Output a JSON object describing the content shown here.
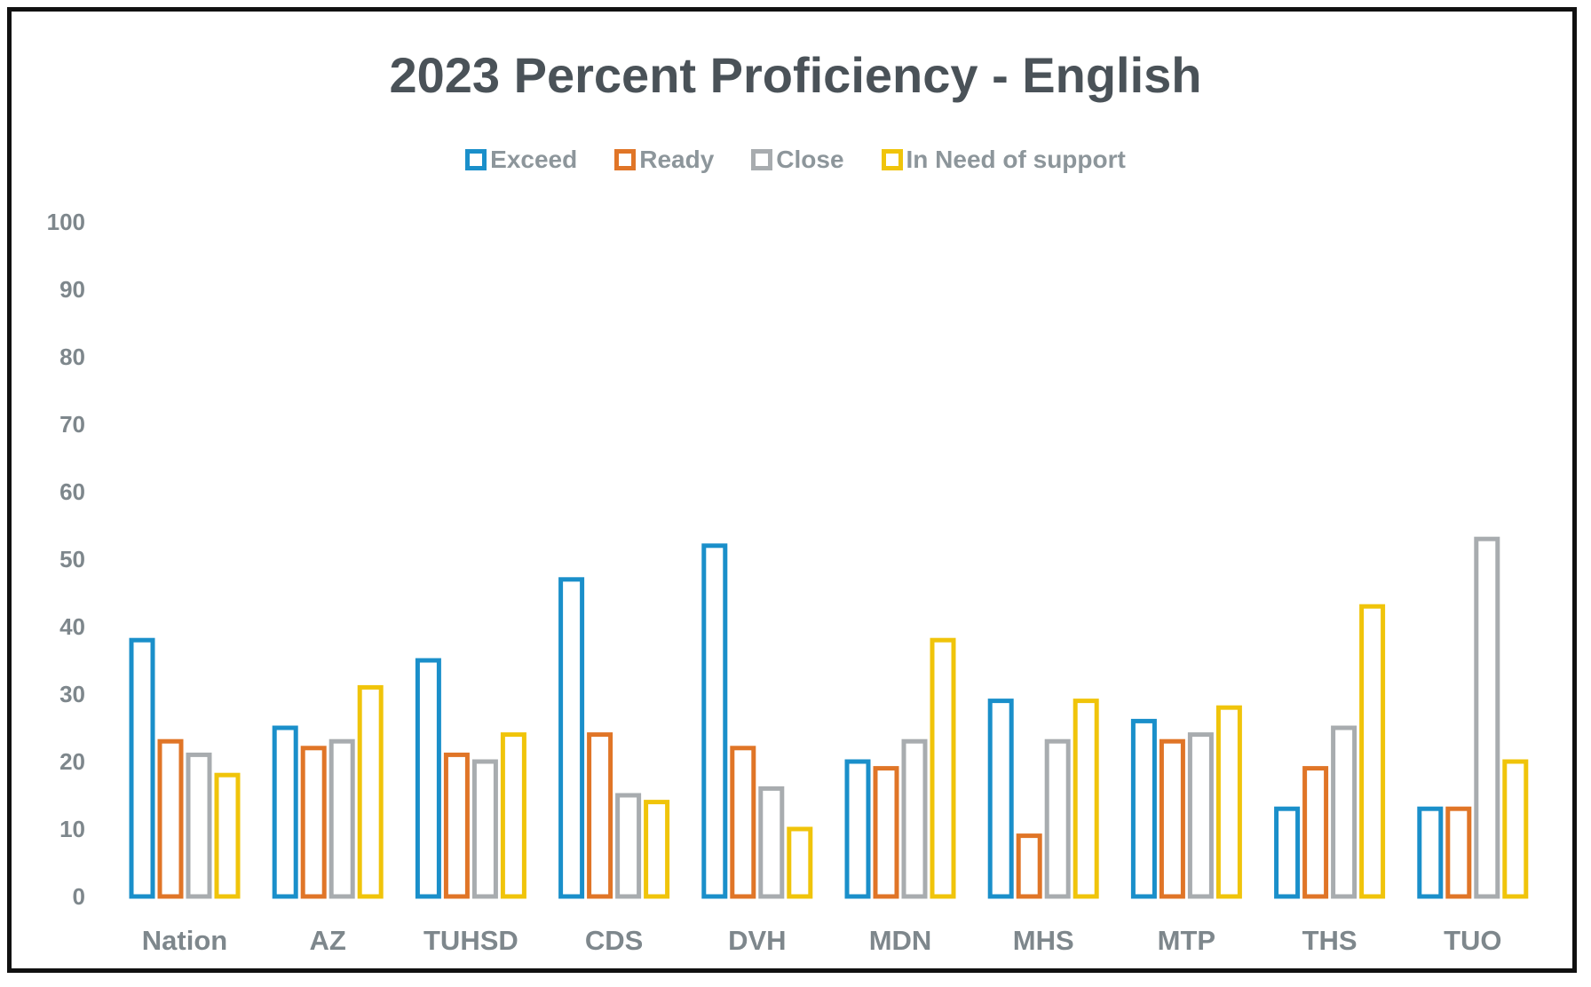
{
  "chart_data": {
    "type": "bar",
    "title": "2023 Percent Proficiency - English",
    "xlabel": "",
    "ylabel": "",
    "ylim": [
      0,
      100
    ],
    "yticks": [
      0,
      10,
      20,
      30,
      40,
      50,
      60,
      70,
      80,
      90,
      100
    ],
    "grid": false,
    "legend_position": "top",
    "categories": [
      "Nation",
      "AZ",
      "TUHSD",
      "CDS",
      "DVH",
      "MDN",
      "MHS",
      "MTP",
      "THS",
      "TUO"
    ],
    "series": [
      {
        "name": "Exceed",
        "color": "#1a8fca",
        "values": [
          38,
          25,
          35,
          47,
          52,
          20,
          29,
          26,
          13,
          13
        ]
      },
      {
        "name": "Ready",
        "color": "#e07527",
        "values": [
          23,
          22,
          21,
          24,
          22,
          19,
          9,
          23,
          19,
          13
        ]
      },
      {
        "name": "Close",
        "color": "#a8acaf",
        "values": [
          21,
          23,
          20,
          15,
          16,
          23,
          23,
          24,
          25,
          53
        ]
      },
      {
        "name": "In Need of support",
        "color": "#f0c40a",
        "values": [
          18,
          31,
          24,
          14,
          10,
          38,
          29,
          28,
          43,
          20
        ]
      }
    ]
  }
}
